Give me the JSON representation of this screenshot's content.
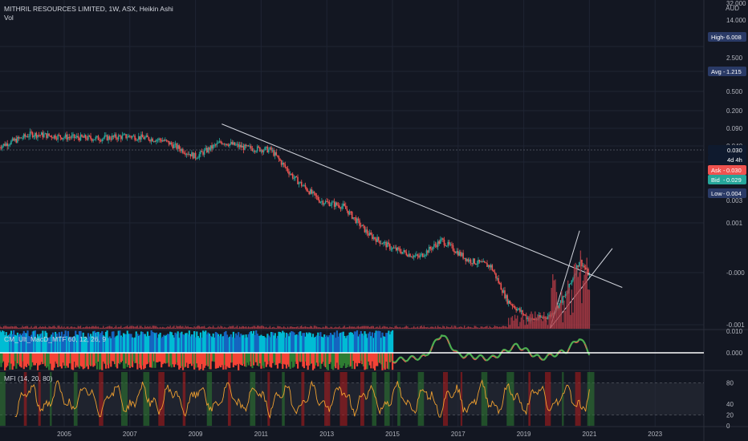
{
  "header": {
    "symbol_title": "MITHRIL RESOURCES LIMITED, 1W, ASX, Heikin Ashi",
    "vol_label": "Vol"
  },
  "price_axis": {
    "currency": "AUD",
    "tick_labels": [
      "32.000",
      "14.000",
      "6.000",
      "2.500",
      "1.000",
      "0.500",
      "0.200",
      "0.090",
      "0.040",
      "0.020",
      "0.010",
      "0.003",
      "0.001",
      "-0.000",
      "-0.001"
    ]
  },
  "price_tags": {
    "high": {
      "label": "High",
      "value": "6.008",
      "color": "#2a3a66"
    },
    "avg": {
      "label": "Avg",
      "value": "1.215",
      "color": "#2a3a66"
    },
    "last": {
      "value": "0.030",
      "color": "#0f1a2e"
    },
    "countdown": {
      "value": "4d 4h",
      "color": "#0f1a2e"
    },
    "ask": {
      "label": "Ask",
      "value": "0.030",
      "color": "#ef5350"
    },
    "bid": {
      "label": "Bid",
      "value": "0.029",
      "color": "#26a69a"
    },
    "low": {
      "label": "Low",
      "value": "0.004",
      "color": "#2a3a66"
    }
  },
  "macd_panel": {
    "label": "CM_Ult_MacD_MTF 60, 12, 26, 9",
    "tick_labels": [
      "0.010",
      "0.000"
    ]
  },
  "mfi_panel": {
    "label": "MFI (14, 20, 80)",
    "tick_labels": [
      "80",
      "40",
      "20",
      "0"
    ]
  },
  "time_axis": {
    "labels": [
      "2005",
      "2007",
      "2009",
      "2011",
      "2013",
      "2015",
      "2017",
      "2019",
      "2021",
      "2023"
    ]
  },
  "chart_data": {
    "type": "line",
    "title": "MITHRIL RESOURCES LIMITED, 1W, ASX, Heikin Ashi",
    "y_scale": "log",
    "x": [
      2003.0,
      2004.0,
      2005.0,
      2006.0,
      2007.0,
      2008.0,
      2009.0,
      2009.8,
      2010.5,
      2011.3,
      2012.0,
      2012.8,
      2013.5,
      2014.3,
      2015.0,
      2015.8,
      2016.5,
      2017.3,
      2018.0,
      2018.5,
      2019.2,
      2019.8,
      2020.3,
      2020.7,
      2021.0
    ],
    "series": [
      {
        "values": [
          2.7,
          4.2,
          3.8,
          3.6,
          3.9,
          3.4,
          1.9,
          3.2,
          2.6,
          2.4,
          0.9,
          0.4,
          0.33,
          0.12,
          0.075,
          0.055,
          0.1,
          0.05,
          0.04,
          0.012,
          0.006,
          0.007,
          0.015,
          0.05,
          0.029
        ]
      }
    ],
    "annotations": [
      {
        "type": "trendline",
        "from": [
          2009.8,
          6.0
        ],
        "to": [
          2022.0,
          0.019
        ]
      },
      {
        "type": "wedge-line",
        "from": [
          2019.8,
          0.0045
        ],
        "to": [
          2020.7,
          0.14
        ]
      },
      {
        "type": "wedge-line",
        "from": [
          2019.8,
          0.0045
        ],
        "to": [
          2021.7,
          0.075
        ]
      }
    ],
    "volume": {
      "x": [
        2019.5,
        2020.0,
        2020.3,
        2020.6,
        2020.8,
        2021.0
      ],
      "note_values_relative": [
        0.1,
        0.2,
        0.35,
        0.9,
        0.75,
        0.45
      ]
    },
    "macd": {
      "x": [
        2015.0,
        2016.0,
        2016.5,
        2017.0,
        2018.0,
        2018.8,
        2019.5,
        2020.3,
        2020.7,
        2021.0
      ],
      "values": [
        -0.004,
        -0.002,
        0.01,
        -0.001,
        -0.003,
        0.004,
        -0.003,
        0.001,
        0.008,
        0.0
      ]
    },
    "mfi": {
      "levels": [
        80,
        20
      ],
      "x": [
        2003.5,
        2005.0,
        2007.0,
        2009.0,
        2011.0,
        2013.0,
        2015.0,
        2017.0,
        2019.0,
        2020.5,
        2021.0
      ],
      "values": [
        55,
        45,
        60,
        30,
        65,
        40,
        55,
        50,
        45,
        85,
        60
      ]
    },
    "colors": {
      "up": "#26a69a",
      "down": "#ef5350",
      "mfi_line": "#f0a030",
      "macd_line_up": "#4caf50",
      "macd_line_down": "#ef5350",
      "macd_hist_bull": "#00bcd4",
      "macd_hist_bear": "#f44336",
      "volume": "#b23b45"
    }
  }
}
